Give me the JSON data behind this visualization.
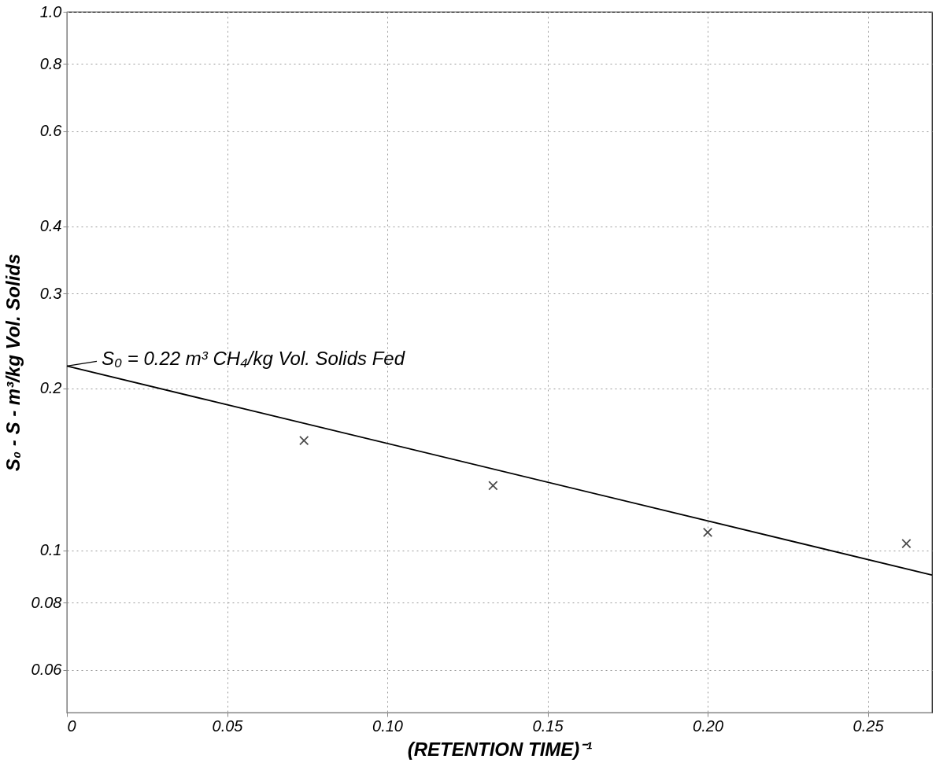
{
  "chart_data": {
    "type": "scatter",
    "xlabel": "(RETENTION TIME)⁻¹",
    "ylabel": "S₀ - S - m³/kg Vol. Solids",
    "log": "y",
    "xlim": [
      0,
      0.27
    ],
    "xticks": [
      {
        "value": 0,
        "label": "0"
      },
      0.05,
      {
        "value": 0.1,
        "label": "0.10"
      },
      0.15,
      {
        "value": 0.2,
        "label": "0.20"
      },
      0.25
    ],
    "ylim": [
      0.05,
      1.0
    ],
    "yticks": [
      0.06,
      0.08,
      0.1,
      0.2,
      0.3,
      0.4,
      0.6,
      0.8,
      {
        "value": 1.0,
        "label": "1.0"
      }
    ],
    "grid": true,
    "series": [
      {
        "marker": "cross",
        "color": "#000000",
        "x": [
          0.074,
          0.133,
          0.2,
          0.262
        ],
        "values": [
          0.16,
          0.132,
          0.108,
          0.103
        ]
      },
      {
        "type": "line",
        "color": "#000000",
        "x": [
          0,
          0.27
        ],
        "values": [
          0.22,
          0.09
        ]
      }
    ],
    "annotations": [
      {
        "text": "S₀ = 0.22 m³ CH₄/kg Vol. Solids Fed",
        "x": 0,
        "y": 0.22
      }
    ]
  }
}
